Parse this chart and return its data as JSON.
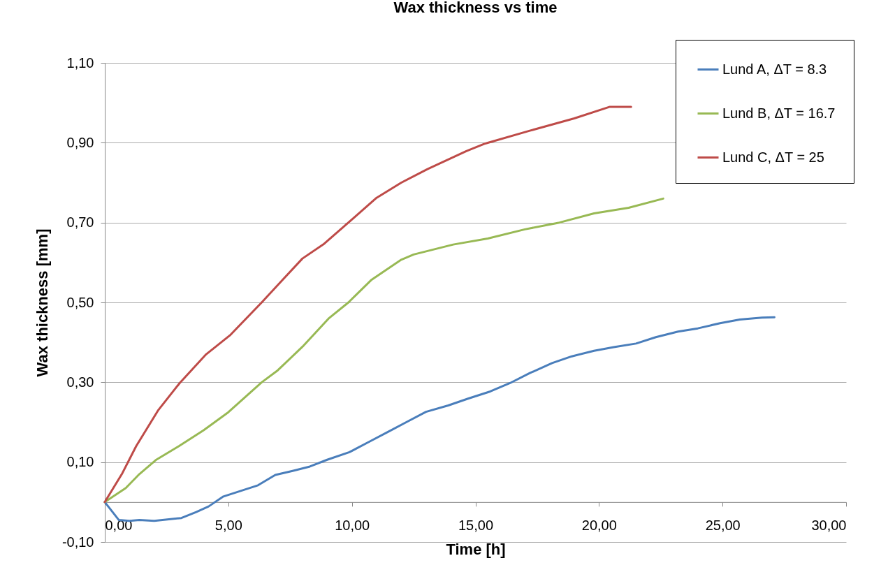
{
  "chart_data": {
    "type": "line",
    "title": "Wax thickness vs time",
    "xlabel": "Time [h]",
    "ylabel": "Wax thickness [mm]",
    "xlim": [
      0,
      30
    ],
    "ylim": [
      -0.1,
      1.1
    ],
    "xticks": [
      {
        "value": 0,
        "label": "0,00"
      },
      {
        "value": 5,
        "label": "5,00"
      },
      {
        "value": 10,
        "label": "10,00"
      },
      {
        "value": 15,
        "label": "15,00"
      },
      {
        "value": 20,
        "label": "20,00"
      },
      {
        "value": 25,
        "label": "25,00"
      },
      {
        "value": 30,
        "label": "30,00"
      }
    ],
    "yticks": [
      {
        "value": -0.1,
        "label": "-0,10"
      },
      {
        "value": 0.1,
        "label": "0,10"
      },
      {
        "value": 0.3,
        "label": "0,30"
      },
      {
        "value": 0.5,
        "label": "0,50"
      },
      {
        "value": 0.7,
        "label": "0,70"
      },
      {
        "value": 0.9,
        "label": "0,90"
      },
      {
        "value": 1.1,
        "label": "1,10"
      }
    ],
    "grid": "y",
    "legend": "top right",
    "marker": "none",
    "line_style": "solid",
    "series": [
      {
        "name": "Lund A, ΔT = 8.3",
        "color": "#4a7ebb",
        "x": [
          0,
          0.57,
          1.0,
          1.4,
          2.0,
          3.1,
          3.7,
          4.2,
          4.8,
          5.5,
          6.2,
          6.9,
          7.6,
          8.3,
          9.0,
          9.9,
          10.7,
          11.5,
          12.2,
          13.0,
          13.9,
          14.7,
          15.6,
          16.4,
          17.2,
          18.1,
          18.9,
          19.8,
          20.6,
          21.5,
          22.3,
          23.2,
          24.0,
          24.9,
          25.7,
          26.6,
          27.1
        ],
        "values": [
          0,
          -0.045,
          -0.047,
          -0.045,
          -0.047,
          -0.04,
          -0.025,
          -0.011,
          0.014,
          0.028,
          0.042,
          0.068,
          0.078,
          0.089,
          0.106,
          0.125,
          0.151,
          0.177,
          0.2,
          0.226,
          0.242,
          0.259,
          0.277,
          0.298,
          0.323,
          0.348,
          0.365,
          0.379,
          0.388,
          0.397,
          0.413,
          0.427,
          0.435,
          0.448,
          0.457,
          0.462,
          0.463
        ]
      },
      {
        "name": "Lund B, ΔT = 16.7",
        "color": "#98b954",
        "x": [
          0,
          0.85,
          1.4,
          2.06,
          3.0,
          4.0,
          5.0,
          6.35,
          7.0,
          8.0,
          9.08,
          9.86,
          10.8,
          11.3,
          12.0,
          12.5,
          14.1,
          15.5,
          17.0,
          18.4,
          19.8,
          21.2,
          22.6
        ],
        "values": [
          0,
          0.035,
          0.07,
          0.105,
          0.14,
          0.18,
          0.225,
          0.3,
          0.33,
          0.389,
          0.461,
          0.5,
          0.557,
          0.578,
          0.607,
          0.62,
          0.645,
          0.66,
          0.683,
          0.7,
          0.723,
          0.737,
          0.76
        ]
      },
      {
        "name": "Lund C, ΔT = 25",
        "color": "#be4b48",
        "x": [
          0,
          0.69,
          1.27,
          2.15,
          3.03,
          4.1,
          5.09,
          6.35,
          7.22,
          8.0,
          8.88,
          9.86,
          11.0,
          12.0,
          13.06,
          14.63,
          15.4,
          17.2,
          19.0,
          20.44,
          21.3
        ],
        "values": [
          0,
          0.07,
          0.14,
          0.229,
          0.298,
          0.37,
          0.419,
          0.5,
          0.558,
          0.61,
          0.647,
          0.7,
          0.762,
          0.8,
          0.834,
          0.879,
          0.898,
          0.93,
          0.961,
          0.99,
          0.99
        ]
      }
    ]
  }
}
